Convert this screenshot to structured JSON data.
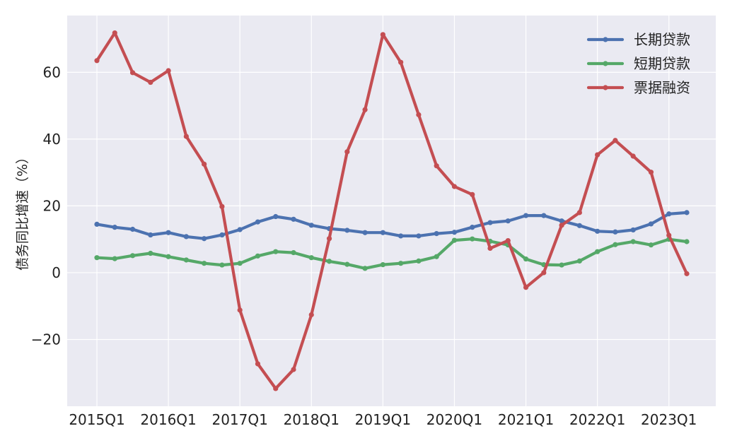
{
  "chart_data": {
    "type": "line",
    "title": "",
    "xlabel": "",
    "ylabel": "债务同比增速（%）",
    "ylim": [
      -40,
      77
    ],
    "grid": true,
    "legend_position": "top-right",
    "background": "#eaeaf2",
    "x": [
      "2015Q1",
      "2015Q2",
      "2015Q3",
      "2015Q4",
      "2016Q1",
      "2016Q2",
      "2016Q3",
      "2016Q4",
      "2017Q1",
      "2017Q2",
      "2017Q3",
      "2017Q4",
      "2018Q1",
      "2018Q2",
      "2018Q3",
      "2018Q4",
      "2019Q1",
      "2019Q2",
      "2019Q3",
      "2019Q4",
      "2020Q1",
      "2020Q2",
      "2020Q3",
      "2020Q4",
      "2021Q1",
      "2021Q2",
      "2021Q3",
      "2021Q4",
      "2022Q1",
      "2022Q2",
      "2022Q3",
      "2022Q4",
      "2023Q1",
      "2023Q2"
    ],
    "x_tick_labels": [
      "2015Q1",
      "2016Q1",
      "2017Q1",
      "2018Q1",
      "2019Q1",
      "2020Q1",
      "2021Q1",
      "2022Q1",
      "2023Q1"
    ],
    "y_ticks": [
      -20,
      0,
      20,
      40,
      60
    ],
    "y_tick_labels": [
      "−20",
      "0",
      "20",
      "40",
      "60"
    ],
    "series": [
      {
        "name": "长期贷款",
        "color": "#4c72b0",
        "values": [
          14.5,
          13.6,
          13.0,
          11.3,
          12.0,
          10.8,
          10.2,
          11.3,
          12.9,
          15.2,
          16.8,
          16.0,
          14.2,
          13.2,
          12.7,
          12.0,
          12.0,
          11.0,
          11.0,
          11.7,
          12.1,
          13.6,
          15.0,
          15.5,
          17.1,
          17.1,
          15.5,
          14.1,
          12.4,
          12.2,
          12.8,
          14.6,
          17.6,
          18.0
        ]
      },
      {
        "name": "短期贷款",
        "color": "#55a868",
        "values": [
          4.5,
          4.2,
          5.1,
          5.8,
          4.8,
          3.8,
          2.8,
          2.3,
          2.8,
          5.0,
          6.3,
          6.0,
          4.5,
          3.4,
          2.5,
          1.3,
          2.4,
          2.8,
          3.5,
          4.8,
          9.7,
          10.1,
          9.4,
          8.3,
          4.1,
          2.4,
          2.3,
          3.5,
          6.3,
          8.4,
          9.3,
          8.3,
          10.0,
          9.3
        ]
      },
      {
        "name": "票据融资",
        "color": "#c44e52",
        "values": [
          63.5,
          71.8,
          59.9,
          57.0,
          60.5,
          40.8,
          32.5,
          19.8,
          -11.2,
          -27.3,
          -34.7,
          -29.0,
          -12.6,
          10.2,
          36.2,
          48.8,
          71.3,
          63.0,
          47.3,
          32.0,
          25.8,
          23.4,
          7.3,
          9.6,
          -4.4,
          0.0,
          14.2,
          18.0,
          35.3,
          39.6,
          34.9,
          30.1,
          11.2,
          -0.3
        ]
      }
    ]
  }
}
